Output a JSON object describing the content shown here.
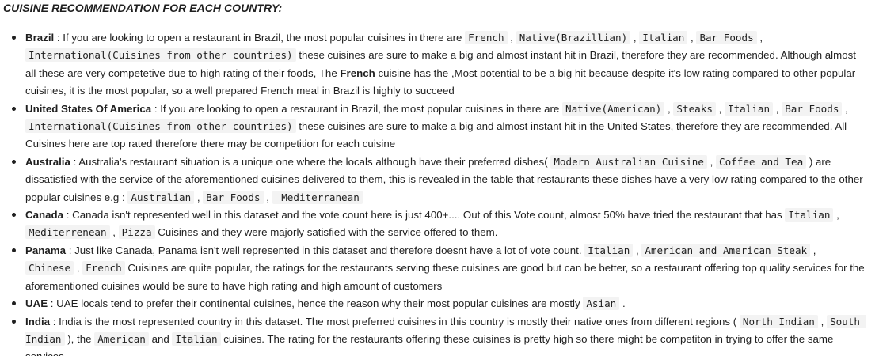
{
  "heading": "CUISINE RECOMMENDATION FOR EACH COUNTRY:",
  "items": [
    {
      "country": "Brazil",
      "parts": [
        {
          "t": "text",
          "v": " : If you are looking to open a restaurant in Brazil, the most popular cuisines in there are "
        },
        {
          "t": "code",
          "v": "French"
        },
        {
          "t": "text",
          "v": " , "
        },
        {
          "t": "code",
          "v": "Native(Brazillian)"
        },
        {
          "t": "text",
          "v": " , "
        },
        {
          "t": "code",
          "v": "Italian"
        },
        {
          "t": "text",
          "v": " , "
        },
        {
          "t": "code",
          "v": "Bar Foods"
        },
        {
          "t": "text",
          "v": " , "
        },
        {
          "t": "code",
          "v": "International(Cuisines from other countries)"
        },
        {
          "t": "text",
          "v": " these cuisines are sure to make a big and almost instant hit in Brazil, therefore they are recommended. Although almost all these are very competetive due to high rating of their foods, The "
        },
        {
          "t": "bold",
          "v": "French"
        },
        {
          "t": "text",
          "v": " cuisine has the ,Most potential to be a big hit because despite it's low rating compared to other popular cuisines, it is the most popular, so a well prepared French meal in Brazil is highly to succeed"
        }
      ]
    },
    {
      "country": "United States Of America",
      "parts": [
        {
          "t": "text",
          "v": " : If you are looking to open a restaurant in Brazil, the most popular cuisines in there are "
        },
        {
          "t": "code",
          "v": "Native(American)"
        },
        {
          "t": "text",
          "v": " , "
        },
        {
          "t": "code",
          "v": "Steaks"
        },
        {
          "t": "text",
          "v": " , "
        },
        {
          "t": "code",
          "v": "Italian"
        },
        {
          "t": "text",
          "v": " , "
        },
        {
          "t": "code",
          "v": "Bar Foods"
        },
        {
          "t": "text",
          "v": " , "
        },
        {
          "t": "code",
          "v": "International(Cuisines from other countries)"
        },
        {
          "t": "text",
          "v": " these cuisines are sure to make a big and almost instant hit in the United States, therefore they are recommended. All Cuisines here are top rated therefore there may be competition for each cuisine"
        }
      ]
    },
    {
      "country": "Australia",
      "parts": [
        {
          "t": "text",
          "v": " : Australia's restaurant situation is a unique one where the locals although have their preferred dishes( "
        },
        {
          "t": "code",
          "v": "Modern Australian Cuisine"
        },
        {
          "t": "text",
          "v": " , "
        },
        {
          "t": "code",
          "v": "Coffee and Tea"
        },
        {
          "t": "text",
          "v": " ) are dissatisfied with the service of the aforementioned cuisines delivered to them, this is revealed in the table that restaurants these dishes have a very low rating compared to the other popular cuisines e.g : "
        },
        {
          "t": "code",
          "v": "Australian"
        },
        {
          "t": "text",
          "v": " , "
        },
        {
          "t": "code",
          "v": "Bar Foods"
        },
        {
          "t": "text",
          "v": " , "
        },
        {
          "t": "code",
          "v": " Mediterranean"
        }
      ]
    },
    {
      "country": "Canada",
      "parts": [
        {
          "t": "text",
          "v": " : Canada isn't represented well in this dataset and the vote count here is just 400+.... Out of this Vote count, almost 50% have tried the restaurant that has "
        },
        {
          "t": "code",
          "v": "Italian"
        },
        {
          "t": "text",
          "v": " , "
        },
        {
          "t": "code",
          "v": "Mediterrenean"
        },
        {
          "t": "text",
          "v": " , "
        },
        {
          "t": "code",
          "v": "Pizza"
        },
        {
          "t": "text",
          "v": " Cuisines and they were majorly satisfied with the service offered to them."
        }
      ]
    },
    {
      "country": "Panama",
      "parts": [
        {
          "t": "text",
          "v": " : Just like Canada, Panama isn't well represented in this dataset and therefore doesnt have a lot of vote count. "
        },
        {
          "t": "code",
          "v": "Italian"
        },
        {
          "t": "text",
          "v": " , "
        },
        {
          "t": "code",
          "v": "American and American Steak"
        },
        {
          "t": "text",
          "v": " , "
        },
        {
          "t": "code",
          "v": "Chinese"
        },
        {
          "t": "text",
          "v": " , "
        },
        {
          "t": "code",
          "v": "French"
        },
        {
          "t": "text",
          "v": " Cuisines are quite popular, the ratings for the restaurants serving these cuisines are good but can be better, so a restaurant offering top quality services for the aforementioned cuisines would be sure to have high rating and high amount of customers"
        }
      ]
    },
    {
      "country": "UAE",
      "parts": [
        {
          "t": "text",
          "v": " : UAE locals tend to prefer their continental cuisines, hence the reason why their most popular cuisines are mostly "
        },
        {
          "t": "code",
          "v": "Asian"
        },
        {
          "t": "text",
          "v": " ."
        }
      ]
    },
    {
      "country": "India",
      "parts": [
        {
          "t": "text",
          "v": " : India is the most represented country in this dataset. The most preferred cuisines in this country is mostly their native ones from different regions ( "
        },
        {
          "t": "code",
          "v": "North Indian"
        },
        {
          "t": "text",
          "v": " , "
        },
        {
          "t": "code",
          "v": "South Indian"
        },
        {
          "t": "text",
          "v": " ), the "
        },
        {
          "t": "code",
          "v": "American"
        },
        {
          "t": "text",
          "v": " and "
        },
        {
          "t": "code",
          "v": "Italian"
        },
        {
          "t": "text",
          "v": " cuisines. The rating for the restaurants offering these cuisines is pretty high so there might be competiton in trying to offer the same services"
        }
      ]
    }
  ]
}
